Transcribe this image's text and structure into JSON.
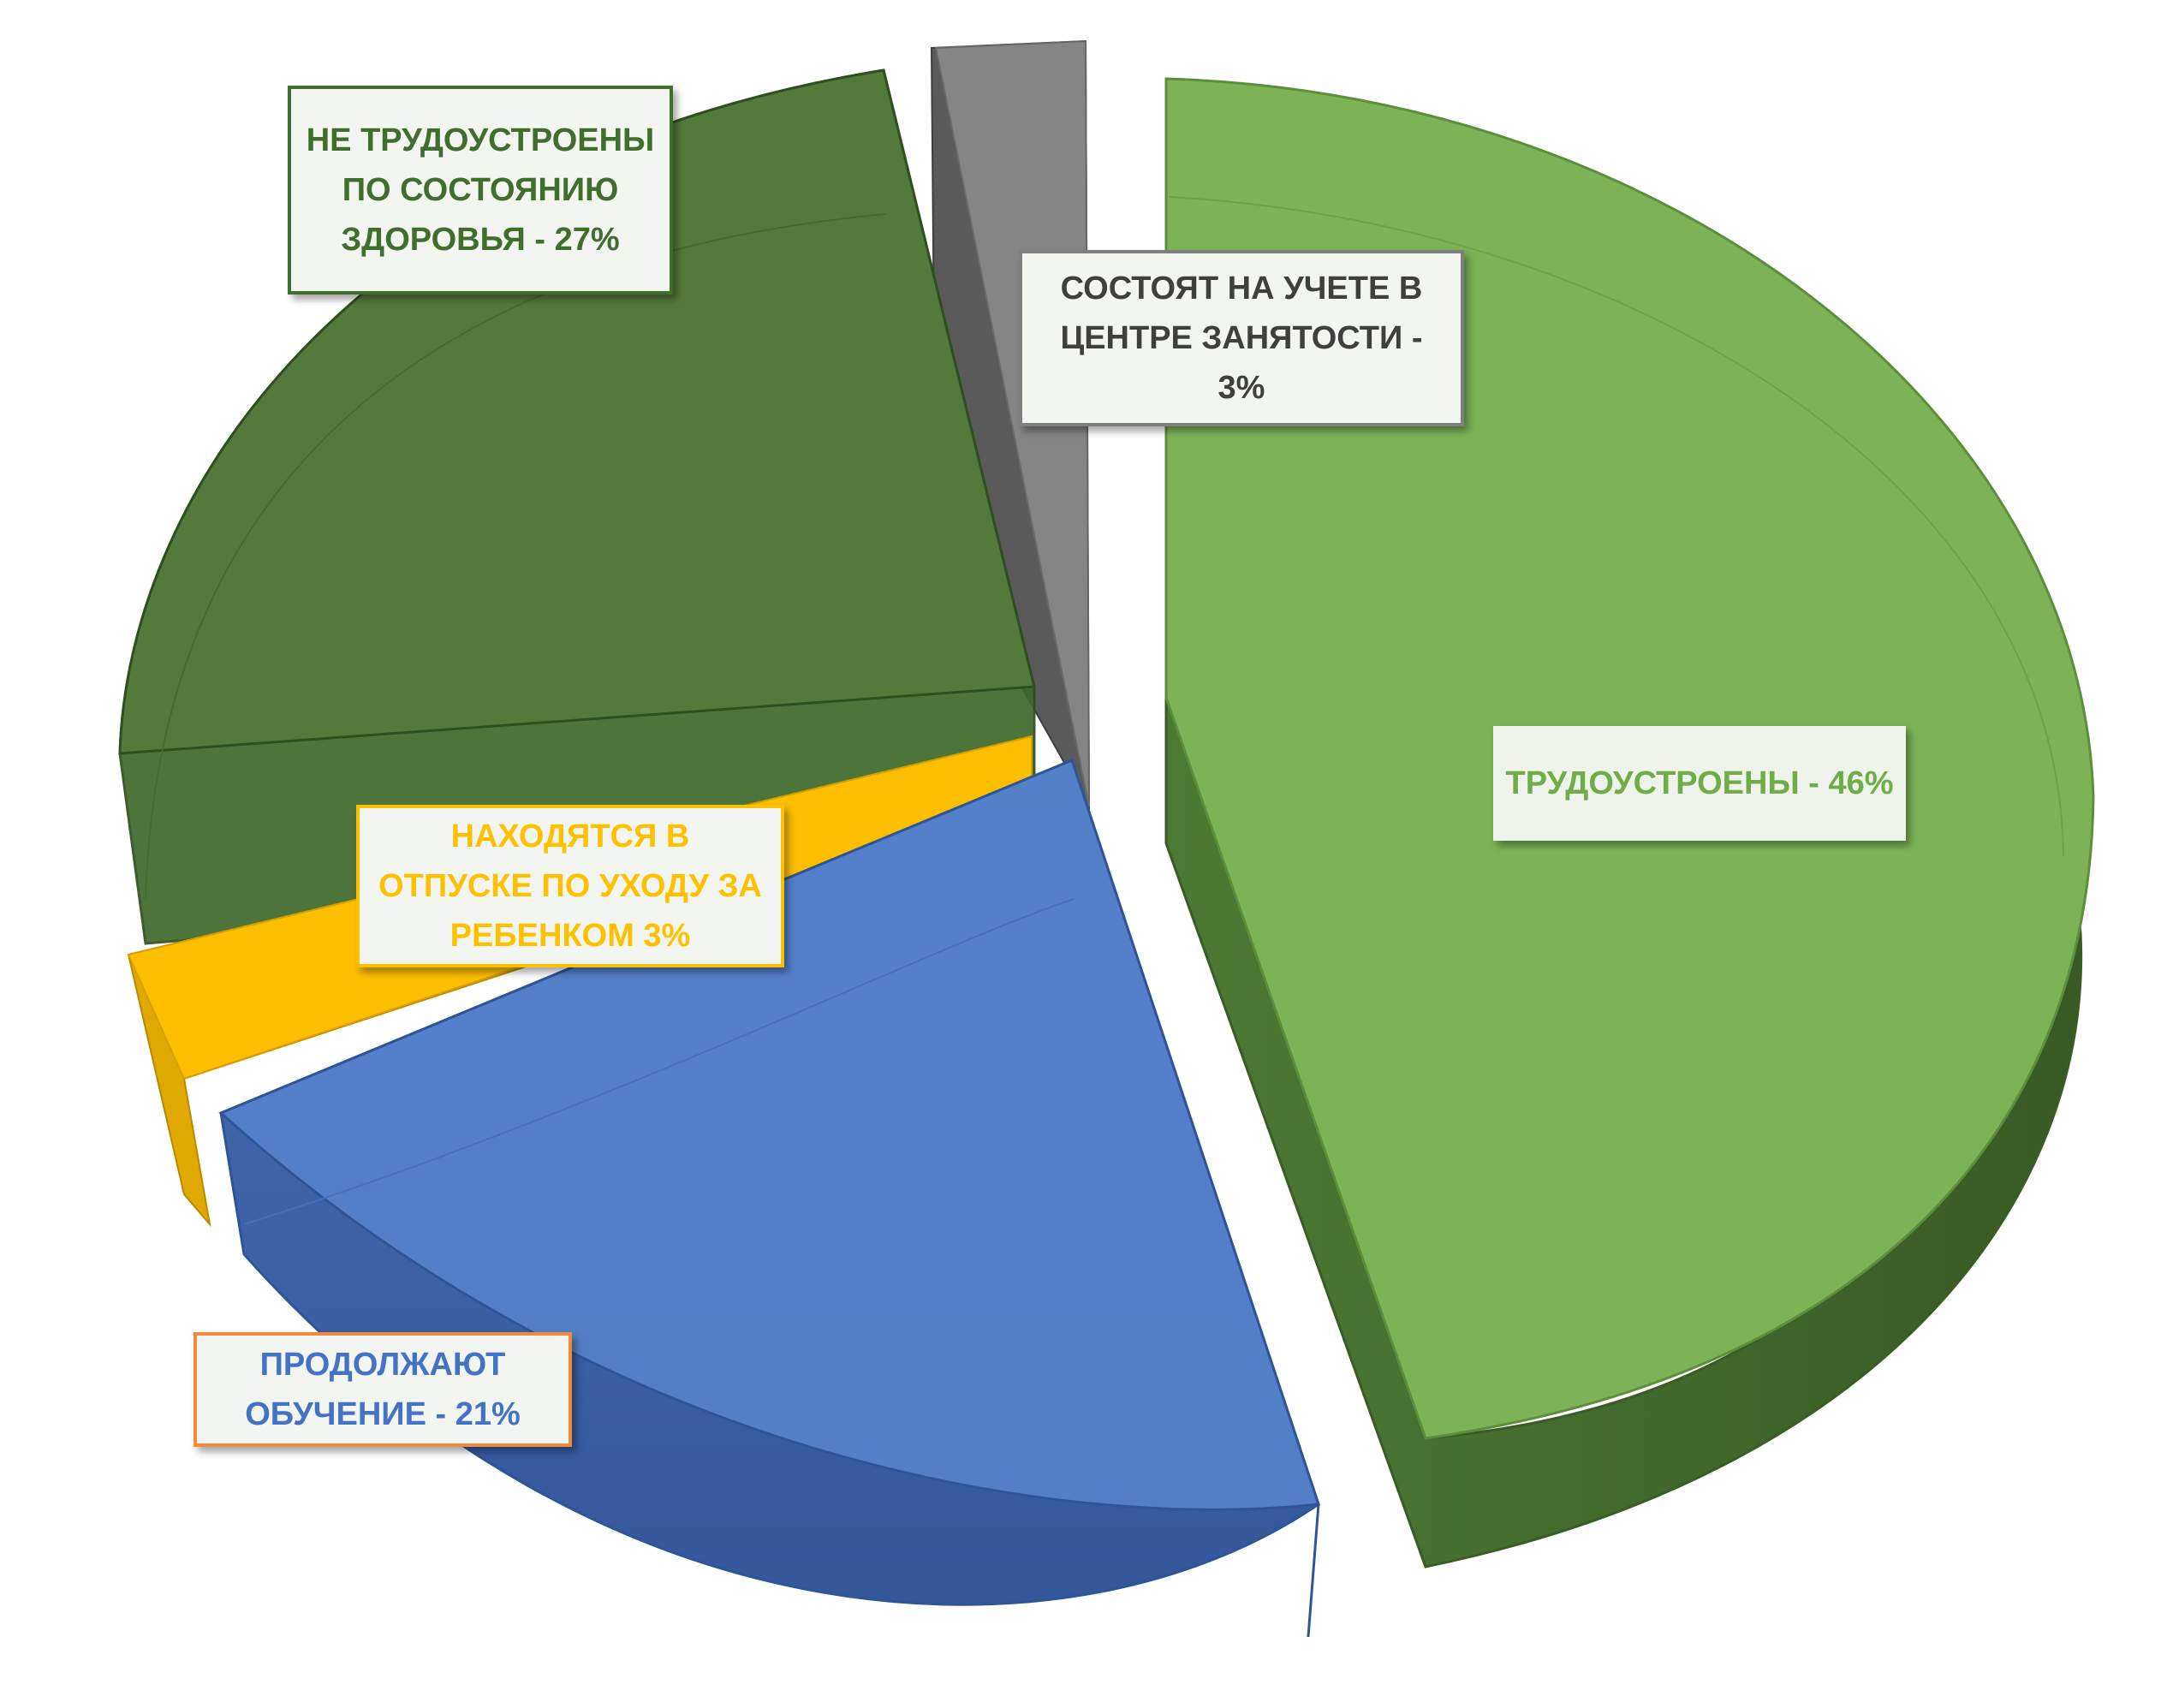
{
  "chart_data": {
    "type": "pie",
    "style": "3d-exploded",
    "slices": [
      {
        "label": "ТРУДОУСТРОЕНЫ - 46%",
        "value": 46,
        "color": "#70ad47"
      },
      {
        "label": "ПРОДОЛЖАЮТ ОБУЧЕНИЕ  - 21%",
        "value": 21,
        "color": "#4472c4"
      },
      {
        "label": "НАХОДЯТСЯ В ОТПУСКЕ ПО УХОДУ ЗА РЕБЕНКОМ 3%",
        "value": 3,
        "color": "#ffc000"
      },
      {
        "label": "НЕ ТРУДОУСТРОЕНЫ ПО СОСТОЯНИЮ ЗДОРОВЬЯ - 27%",
        "value": 27,
        "color": "#3f6e2d"
      },
      {
        "label": "СОСТОЯТ НА УЧЕТЕ В ЦЕНТРЕ ЗАНЯТОСТИ - 3%",
        "value": 3,
        "color": "#7f7f7f"
      }
    ],
    "legend": "none",
    "data_labels": "callout-boxes"
  }
}
